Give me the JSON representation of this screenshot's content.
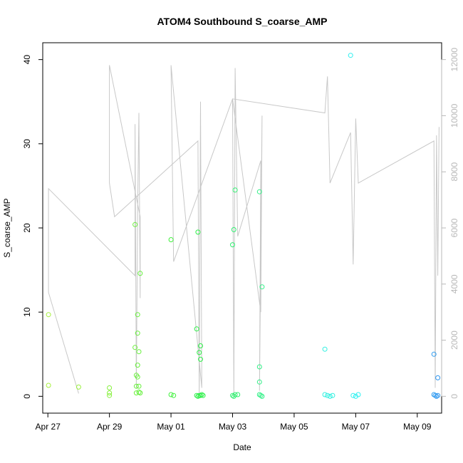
{
  "chart_data": {
    "type": "scatter",
    "title": "ATOM4 Southbound S_coarse_AMP",
    "xlabel": "Date",
    "ylabel": "S_coarse_AMP",
    "x_ticks": [
      "Apr 27",
      "Apr 29",
      "May 01",
      "May 03",
      "May 05",
      "May 07",
      "May 09"
    ],
    "x_tick_values": [
      "2023-04-27",
      "2023-04-29",
      "2023-05-01",
      "2023-05-03",
      "2023-05-05",
      "2023-05-07",
      "2023-05-09"
    ],
    "xlim": [
      "2023-04-26 20:00",
      "2023-05-09 19:00"
    ],
    "ylim": [
      -2,
      42
    ],
    "y_ticks": [
      0,
      10,
      20,
      30,
      40
    ],
    "y_right_ticks": [
      0,
      2000,
      4000,
      6000,
      8000,
      10000,
      12000
    ],
    "y_right_lim": [
      -600,
      12600
    ],
    "points_color_scale": "date gradient: yellow-green → green → cyan → blue",
    "points": [
      {
        "x": "2023-04-27 00:30",
        "y": 9.7,
        "color": "#a6f03c"
      },
      {
        "x": "2023-04-27 00:30",
        "y": 1.3,
        "color": "#a6f03c"
      },
      {
        "x": "2023-04-28 00:00",
        "y": 1.1,
        "color": "#99f03c"
      },
      {
        "x": "2023-04-29 00:00",
        "y": 1.0,
        "color": "#86f03c"
      },
      {
        "x": "2023-04-29 00:00",
        "y": 0.4,
        "color": "#86f03c"
      },
      {
        "x": "2023-04-29 00:00",
        "y": 0.1,
        "color": "#86f03c"
      },
      {
        "x": "2023-04-29 20:00",
        "y": 20.4,
        "color": "#6cf03c"
      },
      {
        "x": "2023-04-29 20:00",
        "y": 5.8,
        "color": "#6cf03c"
      },
      {
        "x": "2023-04-29 21:00",
        "y": 2.5,
        "color": "#6af03c"
      },
      {
        "x": "2023-04-29 21:00",
        "y": 1.2,
        "color": "#6af03c"
      },
      {
        "x": "2023-04-29 21:00",
        "y": 0.4,
        "color": "#6af03c"
      },
      {
        "x": "2023-04-29 22:00",
        "y": 9.7,
        "color": "#68f03c"
      },
      {
        "x": "2023-04-29 22:00",
        "y": 7.5,
        "color": "#68f03c"
      },
      {
        "x": "2023-04-29 22:00",
        "y": 3.7,
        "color": "#68f03c"
      },
      {
        "x": "2023-04-29 22:00",
        "y": 2.3,
        "color": "#68f03c"
      },
      {
        "x": "2023-04-29 23:00",
        "y": 5.3,
        "color": "#66f03c"
      },
      {
        "x": "2023-04-29 23:00",
        "y": 1.2,
        "color": "#66f03c"
      },
      {
        "x": "2023-04-29 23:00",
        "y": 0.5,
        "color": "#66f03c"
      },
      {
        "x": "2023-04-30 00:00",
        "y": 14.6,
        "color": "#64f03c"
      },
      {
        "x": "2023-04-30 00:00",
        "y": 0.4,
        "color": "#64f03c"
      },
      {
        "x": "2023-05-01 00:00",
        "y": 18.6,
        "color": "#40f03c"
      },
      {
        "x": "2023-05-01 00:00",
        "y": 0.2,
        "color": "#40f03c"
      },
      {
        "x": "2023-05-01 02:00",
        "y": 0.1,
        "color": "#40f03c"
      },
      {
        "x": "2023-05-01 21:00",
        "y": 19.5,
        "color": "#2cf046"
      },
      {
        "x": "2023-05-01 20:00",
        "y": 8.0,
        "color": "#2cf046"
      },
      {
        "x": "2023-05-01 22:00",
        "y": 5.2,
        "color": "#2cf046"
      },
      {
        "x": "2023-05-01 23:00",
        "y": 6.0,
        "color": "#2cf048"
      },
      {
        "x": "2023-05-01 23:00",
        "y": 4.4,
        "color": "#2cf048"
      },
      {
        "x": "2023-05-01 20:00",
        "y": 0.1,
        "color": "#2cf046"
      },
      {
        "x": "2023-05-01 21:00",
        "y": 0.0,
        "color": "#2cf046"
      },
      {
        "x": "2023-05-01 22:00",
        "y": 0.1,
        "color": "#2cf046"
      },
      {
        "x": "2023-05-01 23:00",
        "y": 0.1,
        "color": "#2cf048"
      },
      {
        "x": "2023-05-02 00:00",
        "y": 0.2,
        "color": "#2cf048"
      },
      {
        "x": "2023-05-02 01:00",
        "y": 0.1,
        "color": "#2cf048"
      },
      {
        "x": "2023-05-03 02:00",
        "y": 24.5,
        "color": "#30f070"
      },
      {
        "x": "2023-05-03 01:00",
        "y": 19.8,
        "color": "#30f070"
      },
      {
        "x": "2023-05-03 00:00",
        "y": 18.0,
        "color": "#30f070"
      },
      {
        "x": "2023-05-03 00:00",
        "y": 0.1,
        "color": "#30f070"
      },
      {
        "x": "2023-05-03 01:00",
        "y": 0.0,
        "color": "#30f070"
      },
      {
        "x": "2023-05-03 02:00",
        "y": 0.2,
        "color": "#30f070"
      },
      {
        "x": "2023-05-03 04:00",
        "y": 0.2,
        "color": "#30f070"
      },
      {
        "x": "2023-05-03 21:00",
        "y": 24.3,
        "color": "#33f088"
      },
      {
        "x": "2023-05-03 23:00",
        "y": 13.0,
        "color": "#33f088"
      },
      {
        "x": "2023-05-03 21:00",
        "y": 3.5,
        "color": "#33f088"
      },
      {
        "x": "2023-05-03 21:00",
        "y": 1.7,
        "color": "#33f088"
      },
      {
        "x": "2023-05-03 21:00",
        "y": 0.2,
        "color": "#33f088"
      },
      {
        "x": "2023-05-03 22:00",
        "y": 0.1,
        "color": "#33f088"
      },
      {
        "x": "2023-05-03 23:00",
        "y": 0.0,
        "color": "#33f088"
      },
      {
        "x": "2023-05-06 00:00",
        "y": 5.6,
        "color": "#2ef0e0"
      },
      {
        "x": "2023-05-06 00:00",
        "y": 0.2,
        "color": "#2ef0e0"
      },
      {
        "x": "2023-05-06 02:00",
        "y": 0.1,
        "color": "#2ef0e0"
      },
      {
        "x": "2023-05-06 04:00",
        "y": 0.0,
        "color": "#2ef0e0"
      },
      {
        "x": "2023-05-06 06:00",
        "y": 0.1,
        "color": "#2ef0e0"
      },
      {
        "x": "2023-05-06 20:00",
        "y": 40.5,
        "color": "#2ef0f0"
      },
      {
        "x": "2023-05-06 22:00",
        "y": 0.1,
        "color": "#2ef0f0"
      },
      {
        "x": "2023-05-07 00:00",
        "y": 0.0,
        "color": "#2ef0f0"
      },
      {
        "x": "2023-05-07 02:00",
        "y": 0.2,
        "color": "#2ef0f0"
      },
      {
        "x": "2023-05-09 13:00",
        "y": 5.0,
        "color": "#2e9cf0"
      },
      {
        "x": "2023-05-09 16:00",
        "y": 2.2,
        "color": "#2e96f0"
      },
      {
        "x": "2023-05-09 13:00",
        "y": 0.2,
        "color": "#2e9cf0"
      },
      {
        "x": "2023-05-09 14:00",
        "y": 0.1,
        "color": "#2e9cf0"
      },
      {
        "x": "2023-05-09 15:00",
        "y": 0.0,
        "color": "#2e96f0"
      },
      {
        "x": "2023-05-09 16:00",
        "y": 0.1,
        "color": "#2e96f0"
      }
    ],
    "overlay_line": {
      "color": "#c8c8c8",
      "axis": "right",
      "points": [
        [
          "2023-04-27 00:30",
          7400
        ],
        [
          "2023-04-27 00:30",
          3700
        ],
        [
          "2023-04-28 00:00",
          100
        ],
        [
          "2023-04-27 00:30",
          3700
        ],
        [
          "2023-04-27 00:30",
          7400
        ],
        [
          "2023-04-29 20:00",
          4300
        ],
        [
          "2023-04-29 20:00",
          9700
        ],
        [
          "2023-04-29 21:00",
          300
        ],
        [
          "2023-04-29 22:00",
          6700
        ],
        [
          "2023-04-29 23:00",
          10100
        ],
        [
          "2023-04-30 00:00",
          3500
        ],
        [
          "2023-04-30 00:00",
          6400
        ],
        [
          "2023-04-29 00:00",
          11800
        ],
        [
          "2023-04-29 00:00",
          7600
        ],
        [
          "2023-04-29 04:00",
          6400
        ],
        [
          "2023-05-01 21:00",
          9100
        ],
        [
          "2023-05-01 22:00",
          0
        ],
        [
          "2023-05-01 23:00",
          10500
        ],
        [
          "2023-05-02 00:00",
          300
        ],
        [
          "2023-05-01 00:00",
          11800
        ],
        [
          "2023-05-01 02:00",
          4800
        ],
        [
          "2023-05-03 00:00",
          10600
        ],
        [
          "2023-05-03 01:00",
          0
        ],
        [
          "2023-05-03 02:00",
          11700
        ],
        [
          "2023-05-03 04:00",
          5700
        ],
        [
          "2023-05-03 22:00",
          8400
        ],
        [
          "2023-05-03 21:00",
          200
        ],
        [
          "2023-05-03 23:00",
          10000
        ],
        [
          "2023-05-03 22:00",
          3000
        ],
        [
          "2023-05-03 00:00",
          10600
        ],
        [
          "2023-05-06 00:00",
          10100
        ],
        [
          "2023-05-06 02:00",
          11400
        ],
        [
          "2023-05-06 04:00",
          7600
        ],
        [
          "2023-05-06 20:00",
          9400
        ],
        [
          "2023-05-06 22:00",
          4700
        ],
        [
          "2023-05-07 00:00",
          9900
        ],
        [
          "2023-05-07 02:00",
          7600
        ],
        [
          "2023-05-09 13:00",
          9100
        ],
        [
          "2023-05-09 14:00",
          300
        ],
        [
          "2023-05-09 15:00",
          9300
        ],
        [
          "2023-05-09 16:00",
          4300
        ],
        [
          "2023-05-09 17:00",
          9600
        ]
      ]
    },
    "grid": false,
    "legend": "none"
  }
}
